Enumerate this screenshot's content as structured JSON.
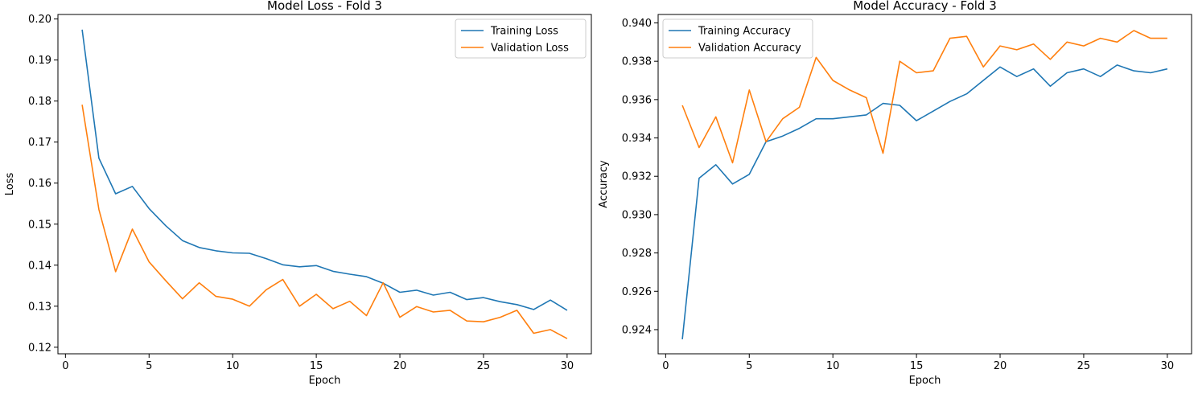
{
  "chart_data": [
    {
      "type": "line",
      "title": "Model Loss - Fold 3",
      "xlabel": "Epoch",
      "ylabel": "Loss",
      "xlim": [
        -0.45,
        31.45
      ],
      "ylim": [
        0.1184,
        0.2011
      ],
      "xticks": [
        0,
        5,
        10,
        15,
        20,
        25,
        30
      ],
      "yticks": [
        0.12,
        0.13,
        0.14,
        0.15,
        0.16,
        0.17,
        0.18,
        0.19,
        0.2
      ],
      "ytick_labels": [
        "0.12",
        "0.13",
        "0.14",
        "0.15",
        "0.16",
        "0.17",
        "0.18",
        "0.19",
        "0.20"
      ],
      "legend_position": "upper right",
      "x": [
        1,
        2,
        3,
        4,
        5,
        6,
        7,
        8,
        9,
        10,
        11,
        12,
        13,
        14,
        15,
        16,
        17,
        18,
        19,
        20,
        21,
        22,
        23,
        24,
        25,
        26,
        27,
        28,
        29,
        30
      ],
      "series": [
        {
          "name": "Training Loss",
          "color": "#1f77b4",
          "values": [
            0.1974,
            0.1661,
            0.1574,
            0.1592,
            0.1538,
            0.1496,
            0.146,
            0.1443,
            0.1435,
            0.143,
            0.1429,
            0.1416,
            0.1401,
            0.1396,
            0.1399,
            0.1385,
            0.1378,
            0.1372,
            0.1356,
            0.1334,
            0.1339,
            0.1327,
            0.1334,
            0.1316,
            0.1321,
            0.1311,
            0.1304,
            0.1292,
            0.1315,
            0.129
          ]
        },
        {
          "name": "Validation Loss",
          "color": "#ff7f0e",
          "values": [
            0.1791,
            0.1536,
            0.1384,
            0.1488,
            0.1408,
            0.1362,
            0.1318,
            0.1357,
            0.1324,
            0.1317,
            0.13,
            0.134,
            0.1365,
            0.13,
            0.1329,
            0.1294,
            0.1312,
            0.1277,
            0.1357,
            0.1273,
            0.1299,
            0.1286,
            0.129,
            0.1264,
            0.1262,
            0.1273,
            0.129,
            0.1234,
            0.1243,
            0.1221
          ]
        }
      ]
    },
    {
      "type": "line",
      "title": "Model Accuracy - Fold 3",
      "xlabel": "Epoch",
      "ylabel": "Accuracy",
      "xlim": [
        -0.45,
        31.45
      ],
      "ylim": [
        0.92274,
        0.94044
      ],
      "xticks": [
        0,
        5,
        10,
        15,
        20,
        25,
        30
      ],
      "yticks": [
        0.924,
        0.926,
        0.928,
        0.93,
        0.932,
        0.934,
        0.936,
        0.938,
        0.94
      ],
      "ytick_labels": [
        "0.924",
        "0.926",
        "0.928",
        "0.930",
        "0.932",
        "0.934",
        "0.936",
        "0.938",
        "0.940"
      ],
      "legend_position": "upper left",
      "x": [
        1,
        2,
        3,
        4,
        5,
        6,
        7,
        8,
        9,
        10,
        11,
        12,
        13,
        14,
        15,
        16,
        17,
        18,
        19,
        20,
        21,
        22,
        23,
        24,
        25,
        26,
        27,
        28,
        29,
        30
      ],
      "series": [
        {
          "name": "Training Accuracy",
          "color": "#1f77b4",
          "values": [
            0.9235,
            0.9319,
            0.9326,
            0.9316,
            0.9321,
            0.9338,
            0.9341,
            0.9345,
            0.935,
            0.935,
            0.9351,
            0.9352,
            0.9358,
            0.9357,
            0.9349,
            0.9354,
            0.9359,
            0.9363,
            0.937,
            0.9377,
            0.9372,
            0.9376,
            0.9367,
            0.9374,
            0.9376,
            0.9372,
            0.9378,
            0.9375,
            0.9374,
            0.9376
          ]
        },
        {
          "name": "Validation Accuracy",
          "color": "#ff7f0e",
          "values": [
            0.9357,
            0.9335,
            0.9351,
            0.9327,
            0.9365,
            0.9338,
            0.935,
            0.9356,
            0.9382,
            0.937,
            0.9365,
            0.9361,
            0.9332,
            0.938,
            0.9374,
            0.9375,
            0.9392,
            0.9393,
            0.9377,
            0.9388,
            0.9386,
            0.9389,
            0.9381,
            0.939,
            0.9388,
            0.9392,
            0.939,
            0.9396,
            0.9392,
            0.9392
          ]
        }
      ]
    }
  ]
}
